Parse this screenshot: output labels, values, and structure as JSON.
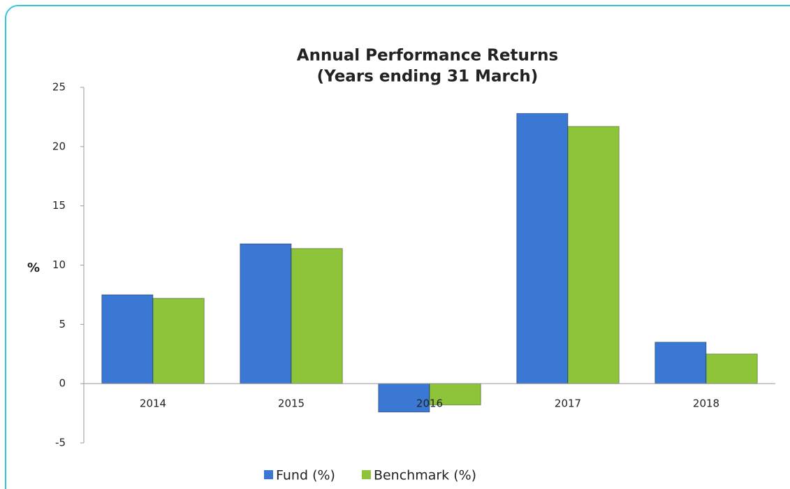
{
  "chart_data": {
    "type": "bar",
    "title": "Annual Performance Returns",
    "subtitle": "(Years ending 31 March)",
    "y_label": "%",
    "categories": [
      "2014",
      "2015",
      "2016",
      "2017",
      "2018"
    ],
    "series": [
      {
        "name": "Fund (%)",
        "color": "#3a78d4",
        "values": [
          7.5,
          11.8,
          -2.4,
          22.8,
          3.5
        ]
      },
      {
        "name": "Benchmark (%)",
        "color": "#8dc43a",
        "values": [
          7.2,
          11.4,
          -1.8,
          21.7,
          2.5
        ]
      }
    ],
    "ylim": [
      -5,
      25
    ],
    "yticks": [
      -5,
      0,
      5,
      10,
      15,
      20,
      25
    ],
    "grid": false,
    "legend": "bottom"
  }
}
